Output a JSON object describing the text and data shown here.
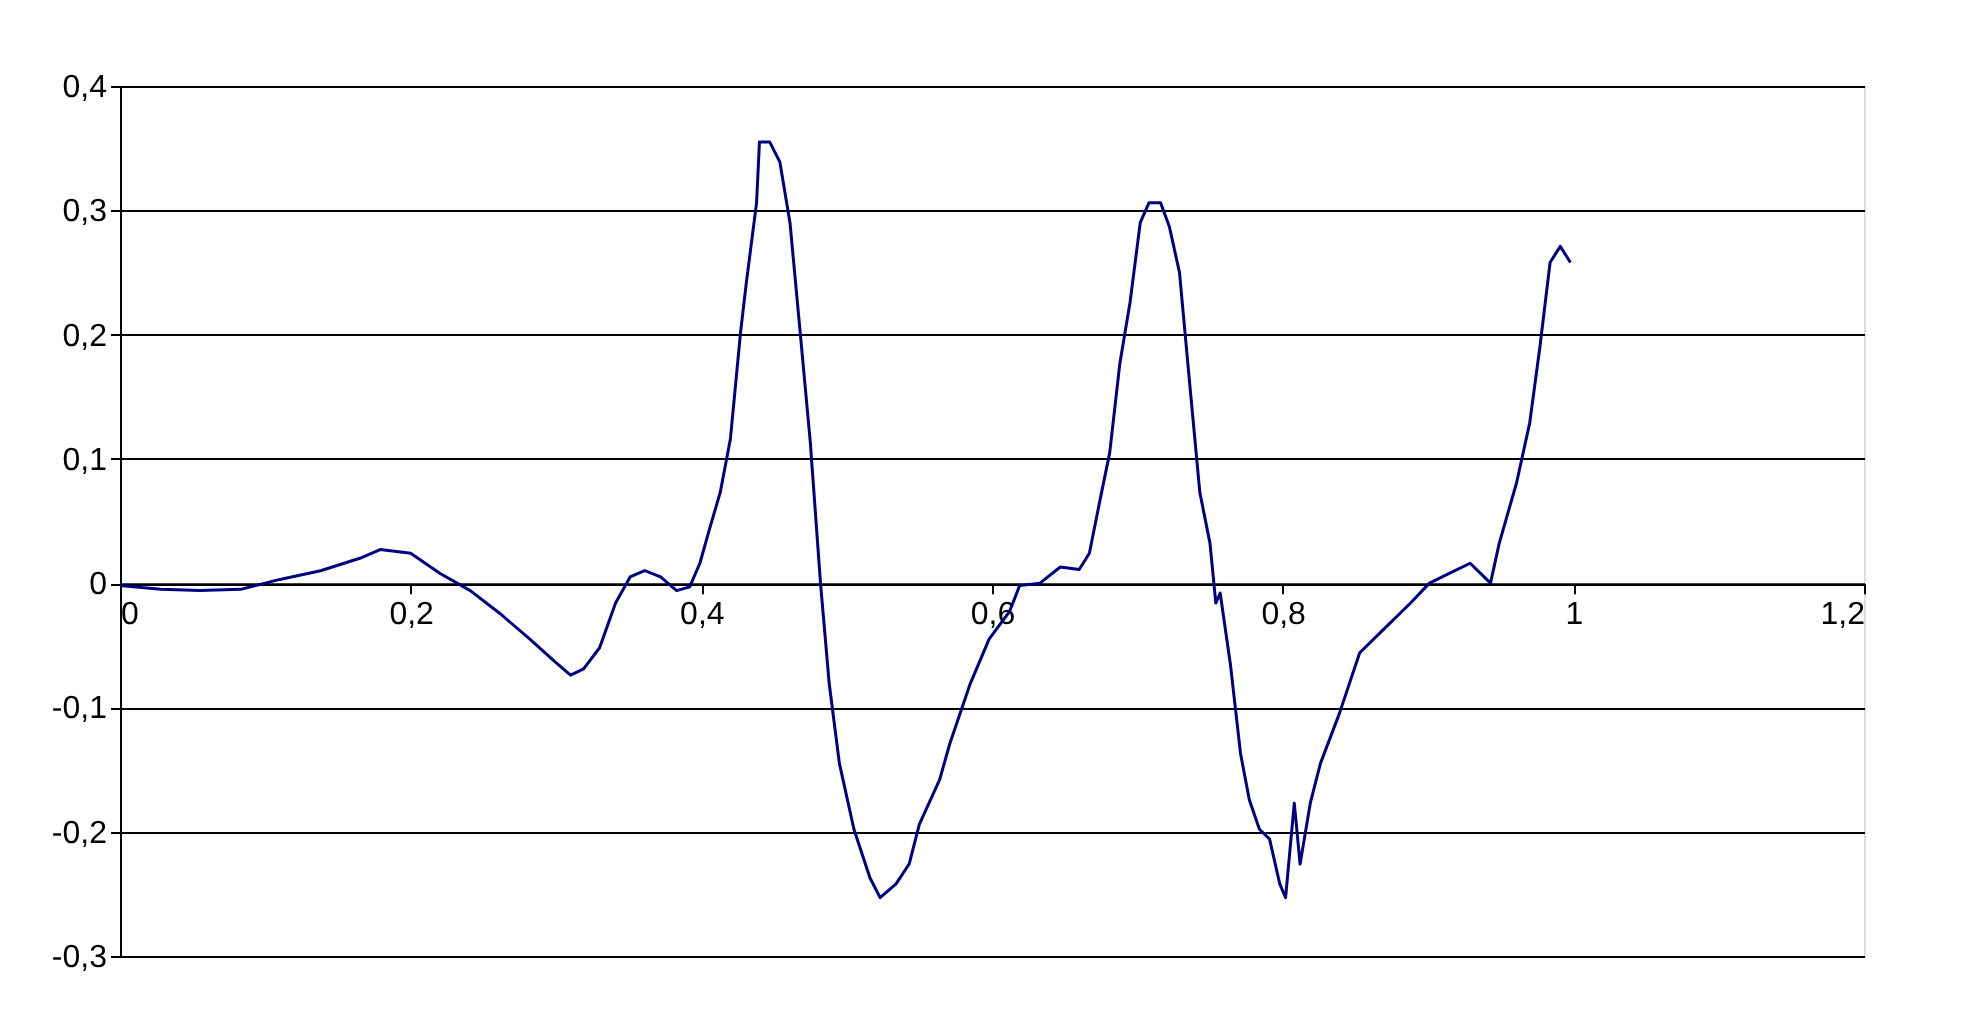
{
  "chart_data": {
    "type": "line",
    "xlim": [
      0,
      1.2
    ],
    "ylim": [
      -0.3,
      0.4
    ],
    "xticks": [
      0,
      {
        "value": 0.2,
        "label": "0,2"
      },
      {
        "value": 0.4,
        "label": "0,4"
      },
      {
        "value": 0.6,
        "label": "0,6"
      },
      {
        "value": 0.8,
        "label": "0,8"
      },
      1,
      {
        "value": 1.2,
        "label": "1,2"
      }
    ],
    "yticks": [
      {
        "value": -0.3,
        "label": "-0,3"
      },
      {
        "value": -0.2,
        "label": "-0,2"
      },
      {
        "value": -0.1,
        "label": "-0,1"
      },
      0,
      {
        "value": 0.1,
        "label": "0,1"
      },
      {
        "value": 0.2,
        "label": "0,2"
      },
      {
        "value": 0.3,
        "label": "0,3"
      },
      {
        "value": 0.4,
        "label": "0,4"
      }
    ],
    "grid": "y",
    "marker": "none",
    "line_style": "solid",
    "series": [
      {
        "color": "#000080",
        "x": [
          0,
          0.028,
          0.055,
          0.083,
          0.11,
          0.138,
          0.165,
          0.179,
          0.2,
          0.22,
          0.241,
          0.261,
          0.282,
          0.299,
          0.31,
          0.319,
          0.33,
          0.341,
          0.351,
          0.361,
          0.372,
          0.383,
          0.392,
          0.399,
          0.406,
          0.413,
          0.42,
          0.427,
          0.431,
          0.438,
          0.44,
          0.447,
          0.454,
          0.461,
          0.468,
          0.475,
          0.482,
          0.488,
          0.495,
          0.505,
          0.516,
          0.523,
          0.534,
          0.543,
          0.55,
          0.564,
          0.571,
          0.585,
          0.598,
          0.612,
          0.619,
          0.633,
          0.647,
          0.66,
          0.667,
          0.674,
          0.681,
          0.688,
          0.695,
          0.702,
          0.708,
          0.716,
          0.722,
          0.729,
          0.736,
          0.743,
          0.75,
          0.754,
          0.757,
          0.764,
          0.771,
          0.777,
          0.784,
          0.791,
          0.798,
          0.802,
          0.808,
          0.812,
          0.819,
          0.826,
          0.839,
          0.853,
          0.867,
          0.888,
          0.901,
          0.915,
          0.929,
          0.943,
          0.949,
          0.961,
          0.97,
          0.977,
          0.984,
          0.991,
          0.998
        ],
        "values": [
          -0.002,
          -0.005,
          -0.006,
          -0.005,
          0.003,
          0.01,
          0.02,
          0.027,
          0.024,
          0.008,
          -0.006,
          -0.024,
          -0.045,
          -0.063,
          -0.074,
          -0.069,
          -0.052,
          -0.016,
          0.005,
          0.01,
          0.005,
          -0.006,
          -0.003,
          0.016,
          0.045,
          0.073,
          0.116,
          0.202,
          0.242,
          0.306,
          0.355,
          0.355,
          0.339,
          0.29,
          0.202,
          0.113,
          0,
          -0.081,
          -0.145,
          -0.198,
          -0.237,
          -0.253,
          -0.242,
          -0.226,
          -0.194,
          -0.158,
          -0.129,
          -0.081,
          -0.045,
          -0.023,
          -0.002,
          0,
          0.013,
          0.011,
          0.024,
          0.065,
          0.105,
          0.177,
          0.226,
          0.29,
          0.306,
          0.306,
          0.287,
          0.25,
          0.161,
          0.073,
          0.032,
          -0.016,
          -0.008,
          -0.065,
          -0.137,
          -0.174,
          -0.198,
          -0.206,
          -0.242,
          -0.253,
          -0.177,
          -0.226,
          -0.177,
          -0.145,
          -0.105,
          -0.056,
          -0.04,
          -0.016,
          0,
          0.008,
          0.016,
          0,
          0.032,
          0.081,
          0.129,
          0.19,
          0.258,
          0.271,
          0.258
        ]
      }
    ]
  }
}
